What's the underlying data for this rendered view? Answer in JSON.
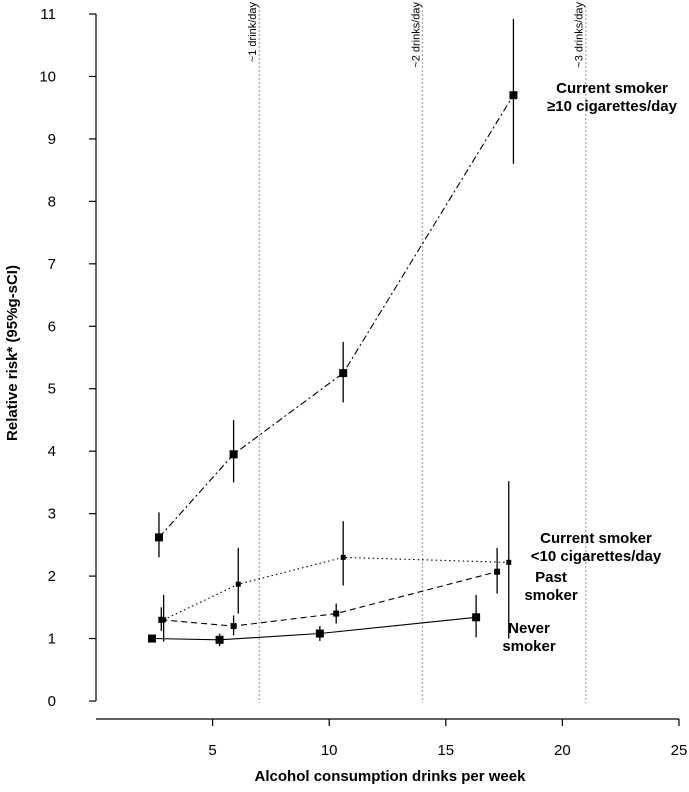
{
  "chart_data": {
    "type": "line",
    "xlabel": "Alcohol consumption drinks per week",
    "ylabel": "Relative risk* (95%g-sCI)",
    "xlim": [
      0,
      25
    ],
    "ylim": [
      0,
      11
    ],
    "x_ticks": [
      5,
      10,
      15,
      20,
      25
    ],
    "y_ticks": [
      0,
      1,
      2,
      3,
      4,
      5,
      6,
      7,
      8,
      9,
      10,
      11
    ],
    "grid": false,
    "reference_lines": [
      {
        "x": 7,
        "label": "~1 drink/day"
      },
      {
        "x": 14,
        "label": "~2 drinks/day"
      },
      {
        "x": 21,
        "label": "~3 drinks/day"
      }
    ],
    "series": [
      {
        "label_lines": [
          "Current smoker",
          "≥10 cigarettes/day"
        ],
        "line_style": "dashdot",
        "points": [
          {
            "x": 2.7,
            "y": 2.62,
            "lo": 2.3,
            "hi": 3.02
          },
          {
            "x": 5.9,
            "y": 3.95,
            "lo": 3.5,
            "hi": 4.5
          },
          {
            "x": 10.6,
            "y": 5.25,
            "lo": 4.78,
            "hi": 5.75
          },
          {
            "x": 17.9,
            "y": 9.7,
            "lo": 8.6,
            "hi": 10.92
          }
        ]
      },
      {
        "label_lines": [
          "Current smoker",
          "<10 cigarettes/day"
        ],
        "line_style": "dotted",
        "points": [
          {
            "x": 2.9,
            "y": 1.3,
            "lo": 0.95,
            "hi": 1.7
          },
          {
            "x": 6.1,
            "y": 1.87,
            "lo": 1.4,
            "hi": 2.45
          },
          {
            "x": 10.6,
            "y": 2.3,
            "lo": 1.85,
            "hi": 2.88
          },
          {
            "x": 17.7,
            "y": 2.22,
            "lo": 1.0,
            "hi": 3.52
          }
        ]
      },
      {
        "label_lines": [
          "Past",
          "smoker"
        ],
        "line_style": "dashed",
        "points": [
          {
            "x": 2.8,
            "y": 1.3,
            "lo": 1.12,
            "hi": 1.5
          },
          {
            "x": 5.9,
            "y": 1.2,
            "lo": 1.05,
            "hi": 1.37
          },
          {
            "x": 10.3,
            "y": 1.4,
            "lo": 1.24,
            "hi": 1.56
          },
          {
            "x": 17.2,
            "y": 2.07,
            "lo": 1.72,
            "hi": 2.45
          }
        ]
      },
      {
        "label_lines": [
          "Never",
          "smoker"
        ],
        "line_style": "solid",
        "points": [
          {
            "x": 2.4,
            "y": 1.0,
            "lo": 0.95,
            "hi": 1.05
          },
          {
            "x": 5.3,
            "y": 0.98,
            "lo": 0.88,
            "hi": 1.08
          },
          {
            "x": 9.6,
            "y": 1.08,
            "lo": 0.96,
            "hi": 1.2
          },
          {
            "x": 16.3,
            "y": 1.34,
            "lo": 1.02,
            "hi": 1.7
          }
        ]
      }
    ]
  }
}
